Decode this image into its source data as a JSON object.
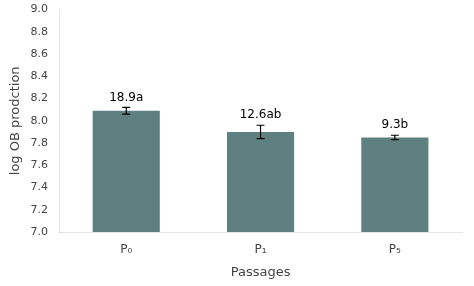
{
  "chart_data": {
    "type": "bar",
    "categories": [
      "P₀",
      "P₁",
      "P₅"
    ],
    "values": [
      8.09,
      7.9,
      7.85
    ],
    "errors": [
      0.03,
      0.06,
      0.02
    ],
    "annotations": [
      "18.9a",
      "12.6ab",
      "9.3b"
    ],
    "color": "#5f8080",
    "xlabel": "Passages",
    "ylabel": "log OB prodction",
    "ylim": [
      7.0,
      9.0
    ],
    "yticks": [
      {
        "value": 7.0,
        "label": "7.0"
      },
      7.2,
      7.4,
      7.6,
      7.8,
      {
        "value": 8.0,
        "label": "8.0"
      },
      8.2,
      8.4,
      8.6,
      8.8,
      {
        "value": 9.0,
        "label": "9.0"
      }
    ],
    "grid": false
  }
}
